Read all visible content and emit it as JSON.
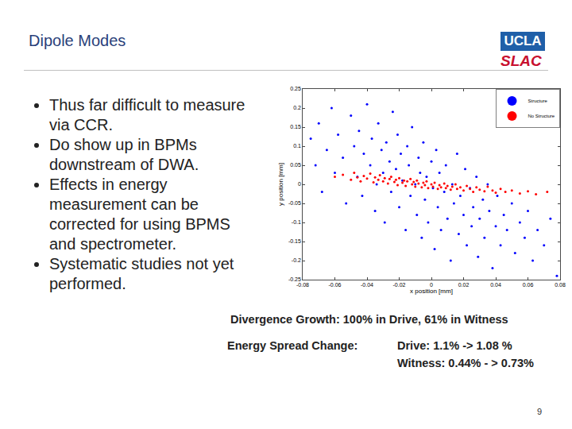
{
  "slide": {
    "title": "Dipole Modes",
    "logos": [
      "UCLA",
      "SLAC"
    ],
    "bullets": [
      "Thus far difficult to measure via CCR.",
      "Do show up in BPMs downstream of DWA.",
      "Effects in energy measurement can be corrected for using BPMS and spectrometer.",
      "Systematic studies not yet performed."
    ],
    "divergence": "Divergence Growth: 100% in Drive, 61% in Witness",
    "energy_label": "Energy Spread Change:",
    "energy_drive": "Drive: 1.1% -> 1.08 %",
    "energy_witness": "Witness: 0.44% - > 0.73%",
    "page_number": "9"
  },
  "chart_data": {
    "type": "scatter",
    "x_label": "x position [mm]",
    "y_label": "y position [mm]",
    "xlim": [
      -0.08,
      0.08
    ],
    "xticks": [
      -0.08,
      -0.06,
      -0.04,
      -0.02,
      0,
      0.02,
      0.04,
      0.06,
      0.08
    ],
    "ylim": [
      -0.25,
      0.25
    ],
    "yticks": [
      -0.25,
      -0.2,
      -0.15,
      -0.1,
      -0.05,
      0,
      0.05,
      0.1,
      0.15,
      0.2,
      0.25
    ],
    "grid": false,
    "legend": "upper right",
    "marker": "circle",
    "series": [
      {
        "name": "Structure",
        "color": "#0000ff",
        "x": [
          -0.075,
          -0.072,
          -0.07,
          -0.068,
          -0.065,
          -0.062,
          -0.06,
          -0.058,
          -0.055,
          -0.053,
          -0.05,
          -0.048,
          -0.046,
          -0.045,
          -0.043,
          -0.042,
          -0.04,
          -0.038,
          -0.037,
          -0.035,
          -0.034,
          -0.033,
          -0.031,
          -0.03,
          -0.029,
          -0.028,
          -0.026,
          -0.025,
          -0.024,
          -0.022,
          -0.021,
          -0.02,
          -0.019,
          -0.018,
          -0.016,
          -0.015,
          -0.014,
          -0.013,
          -0.012,
          -0.01,
          -0.009,
          -0.008,
          -0.007,
          -0.006,
          -0.005,
          -0.004,
          -0.003,
          -0.002,
          0,
          0.001,
          0.002,
          0.003,
          0.004,
          0.005,
          0.006,
          0.008,
          0.009,
          0.01,
          0.012,
          0.013,
          0.014,
          0.016,
          0.017,
          0.018,
          0.02,
          0.021,
          0.022,
          0.024,
          0.025,
          0.026,
          0.028,
          0.029,
          0.03,
          0.032,
          0.033,
          0.035,
          0.036,
          0.038,
          0.04,
          0.041,
          0.043,
          0.045,
          0.047,
          0.05,
          0.052,
          0.055,
          0.058,
          0.06,
          0.063,
          0.066,
          0.07,
          0.074,
          0.078
        ],
        "y": [
          0.12,
          0.05,
          0.16,
          -0.02,
          0.09,
          0.2,
          0.03,
          0.13,
          0.07,
          -0.05,
          0.18,
          0.1,
          0.02,
          0.14,
          -0.03,
          0.08,
          0.21,
          0.05,
          0.12,
          -0.07,
          0,
          0.16,
          0.09,
          0.03,
          -0.1,
          0.11,
          0.06,
          -0.02,
          0.19,
          0.04,
          0.13,
          -0.06,
          0.08,
          0.01,
          -0.12,
          0.1,
          0.05,
          -0.03,
          0.15,
          0,
          -0.08,
          0.07,
          0.03,
          -0.14,
          0.11,
          -0.04,
          0.02,
          -0.1,
          0.06,
          -0.01,
          -0.17,
          0.09,
          -0.06,
          0.03,
          -0.12,
          -0.02,
          0.05,
          -0.09,
          -0.2,
          0,
          -0.05,
          0.08,
          -0.13,
          -0.03,
          -0.08,
          0.04,
          -0.16,
          -0.01,
          -0.11,
          -0.06,
          0.02,
          -0.19,
          -0.09,
          -0.04,
          -0.14,
          0,
          -0.07,
          -0.22,
          -0.11,
          -0.03,
          -0.16,
          -0.08,
          -0.12,
          -0.05,
          -0.18,
          -0.1,
          -0.14,
          -0.07,
          -0.2,
          -0.12,
          -0.16,
          -0.09,
          -0.24
        ]
      },
      {
        "name": "No Structure",
        "color": "#ff0000",
        "x": [
          -0.06,
          -0.055,
          -0.05,
          -0.048,
          -0.046,
          -0.044,
          -0.042,
          -0.04,
          -0.038,
          -0.036,
          -0.035,
          -0.033,
          -0.032,
          -0.03,
          -0.029,
          -0.027,
          -0.026,
          -0.025,
          -0.023,
          -0.022,
          -0.021,
          -0.02,
          -0.018,
          -0.017,
          -0.016,
          -0.015,
          -0.013,
          -0.012,
          -0.011,
          -0.01,
          -0.009,
          -0.008,
          -0.006,
          -0.005,
          -0.004,
          -0.003,
          -0.002,
          0,
          0.001,
          0.002,
          0.004,
          0.005,
          0.006,
          0.008,
          0.009,
          0.01,
          0.012,
          0.013,
          0.015,
          0.016,
          0.018,
          0.02,
          0.022,
          0.024,
          0.026,
          0.028,
          0.03,
          0.033,
          0.035,
          0.038,
          0.04,
          0.043,
          0.046,
          0.05,
          0.055,
          0.06,
          0.065,
          0.072
        ],
        "y": [
          0.02,
          0.025,
          0.012,
          0.03,
          0.018,
          0.008,
          0.022,
          0.015,
          0.028,
          0.005,
          0.018,
          0.012,
          0.024,
          0.008,
          0.016,
          0.002,
          0.014,
          0.02,
          0.006,
          0.012,
          -0.002,
          0.016,
          0.004,
          0.01,
          -0.004,
          0.008,
          0.014,
          0,
          0.006,
          -0.006,
          0.01,
          0.002,
          -0.008,
          0.004,
          -0.002,
          0.008,
          -0.01,
          0,
          -0.006,
          0.004,
          -0.012,
          -0.002,
          -0.008,
          0.002,
          -0.01,
          -0.004,
          -0.014,
          -0.006,
          0,
          -0.012,
          -0.008,
          -0.016,
          -0.004,
          -0.012,
          -0.02,
          -0.008,
          -0.014,
          -0.018,
          -0.006,
          -0.016,
          -0.022,
          -0.012,
          -0.02,
          -0.016,
          -0.024,
          -0.018,
          -0.026,
          -0.02
        ]
      }
    ]
  }
}
